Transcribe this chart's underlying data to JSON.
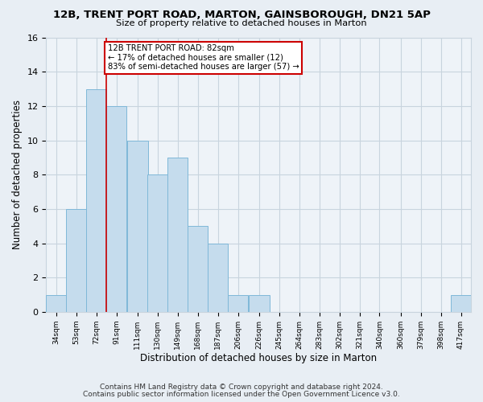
{
  "title": "12B, TRENT PORT ROAD, MARTON, GAINSBOROUGH, DN21 5AP",
  "subtitle": "Size of property relative to detached houses in Marton",
  "xlabel": "Distribution of detached houses by size in Marton",
  "ylabel": "Number of detached properties",
  "bin_labels": [
    "34sqm",
    "53sqm",
    "72sqm",
    "91sqm",
    "111sqm",
    "130sqm",
    "149sqm",
    "168sqm",
    "187sqm",
    "206sqm",
    "226sqm",
    "245sqm",
    "264sqm",
    "283sqm",
    "302sqm",
    "321sqm",
    "340sqm",
    "360sqm",
    "379sqm",
    "398sqm",
    "417sqm"
  ],
  "bar_heights": [
    1,
    6,
    13,
    12,
    10,
    8,
    9,
    5,
    4,
    1,
    1,
    0,
    0,
    0,
    0,
    0,
    0,
    0,
    0,
    0,
    1
  ],
  "bar_color": "#c5dced",
  "bar_edge_color": "#7fb8d8",
  "vline_x_index": 2,
  "ylim": [
    0,
    16
  ],
  "yticks": [
    0,
    2,
    4,
    6,
    8,
    10,
    12,
    14,
    16
  ],
  "annotation_text": "12B TRENT PORT ROAD: 82sqm\n← 17% of detached houses are smaller (12)\n83% of semi-detached houses are larger (57) →",
  "annotation_box_color": "white",
  "annotation_box_edge_color": "#cc0000",
  "vline_color": "#cc0000",
  "footer_line1": "Contains HM Land Registry data © Crown copyright and database right 2024.",
  "footer_line2": "Contains public sector information licensed under the Open Government Licence v3.0.",
  "background_color": "#e8eef4",
  "plot_background_color": "#eef3f8",
  "grid_color": "#c8d4de"
}
